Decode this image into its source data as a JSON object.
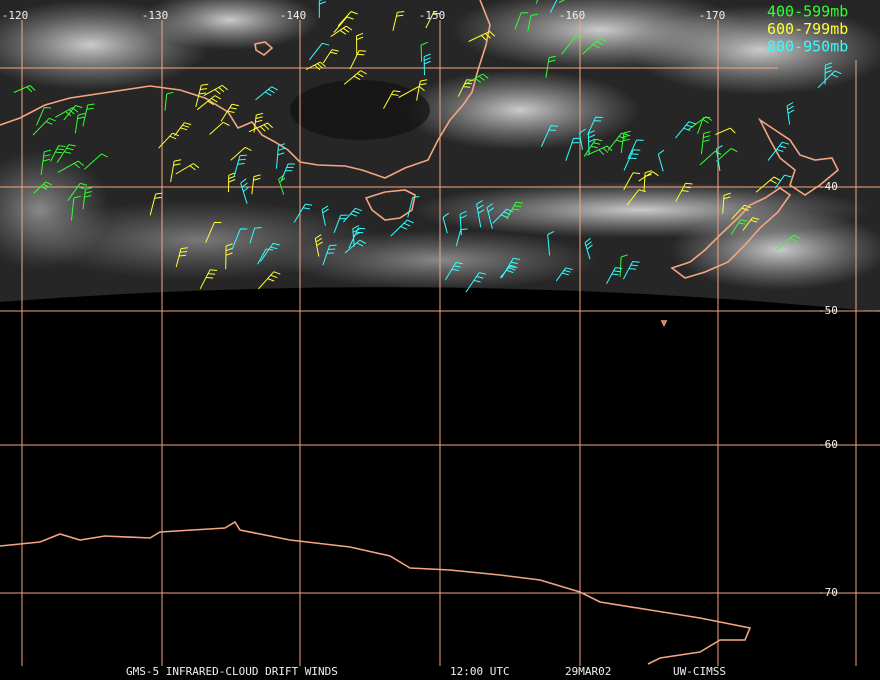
{
  "lon_labels": [
    "-120",
    "-130",
    "-140",
    "-150",
    "-160",
    "-170"
  ],
  "lat_labels": [
    "-40",
    "-50",
    "-60",
    "-70"
  ],
  "legend": [
    {
      "label": "400-599mb",
      "color": "#33ff33"
    },
    {
      "label": "600-799mb",
      "color": "#ffff33"
    },
    {
      "label": "800-950mb",
      "color": "#33ffff"
    }
  ],
  "footer": {
    "source": "GMS-5 INFRARED-CLOUD DRIFT WINDS",
    "time": "12:00 UTC",
    "date": "29MAR02",
    "credit": "UW-CIMSS"
  }
}
